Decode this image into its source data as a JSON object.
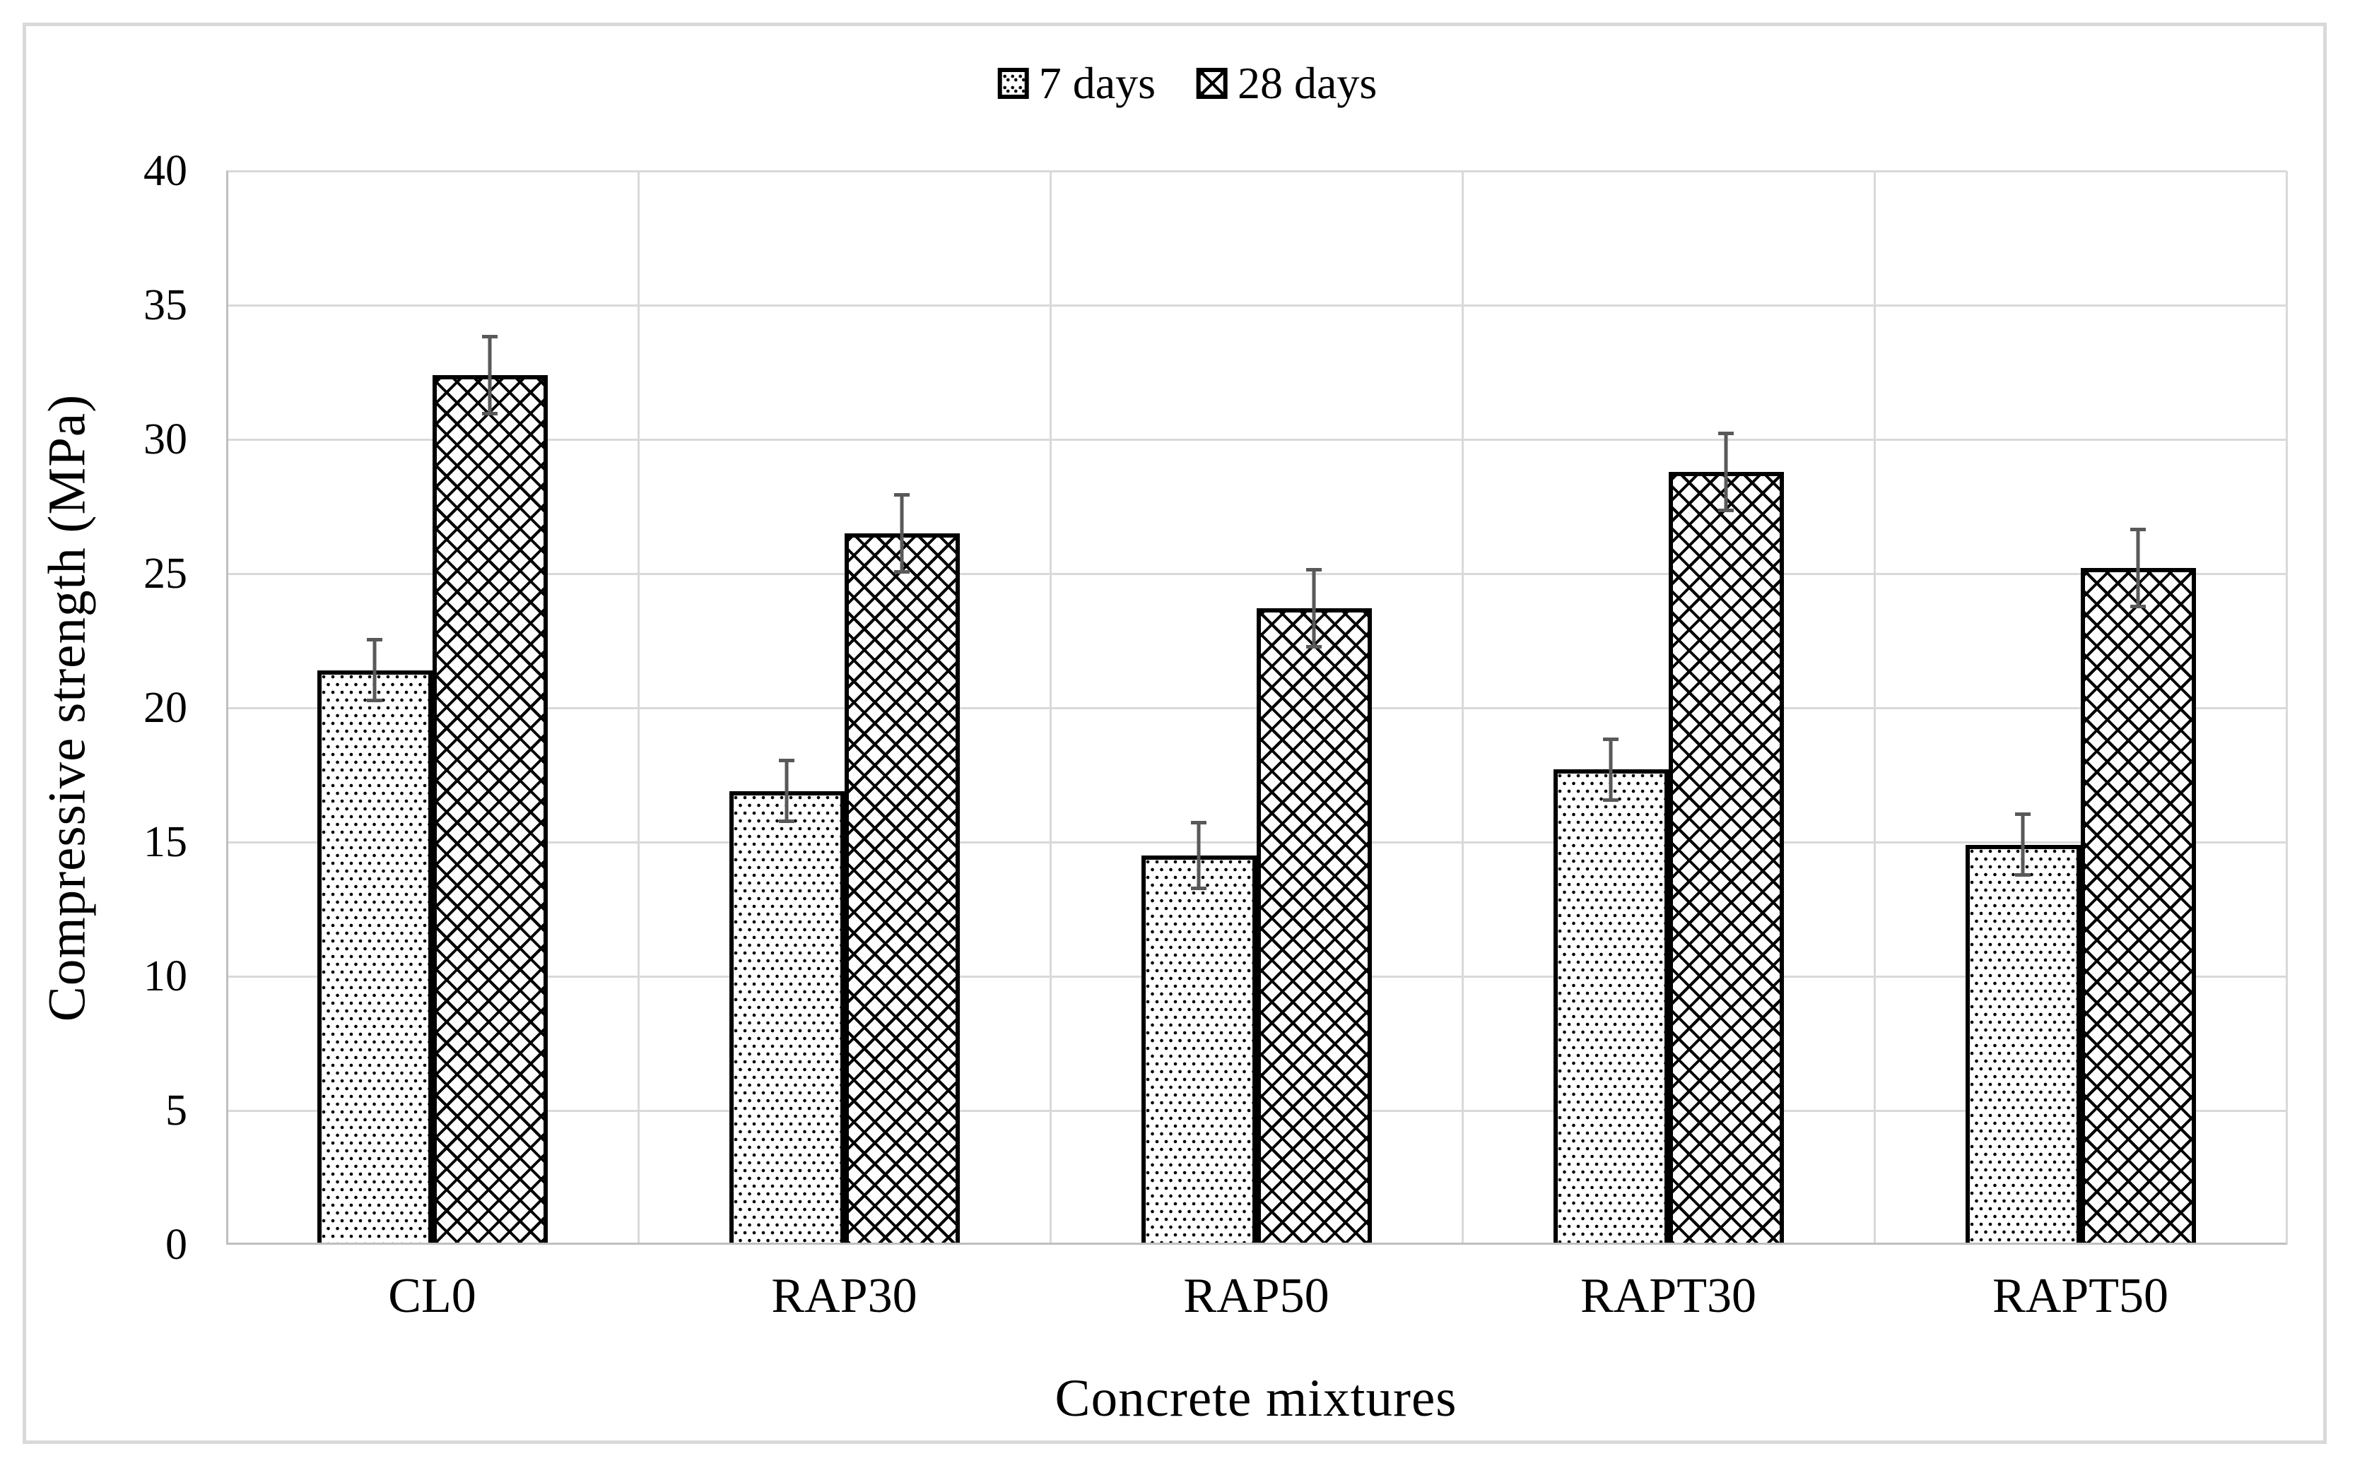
{
  "figure": {
    "xlabel": "Concrete mixtures",
    "ylabel": "Compressive strength (MPa)"
  },
  "chart_data": {
    "type": "bar",
    "title": "",
    "xlabel": "Concrete mixtures",
    "ylabel": "Compressive strength (MPa)",
    "categories": [
      "CL0",
      "RAP30",
      "RAP50",
      "RAPT30",
      "RAPT50"
    ],
    "series": [
      {
        "name": "7 days",
        "pattern": "dots",
        "values": [
          21.4,
          16.9,
          14.5,
          17.7,
          14.9
        ],
        "errors": [
          1.2,
          1.2,
          1.3,
          1.2,
          1.2
        ]
      },
      {
        "name": "28 days",
        "pattern": "crosshatch",
        "values": [
          32.4,
          26.5,
          23.7,
          28.8,
          25.2
        ],
        "errors": [
          1.5,
          1.5,
          1.5,
          1.5,
          1.5
        ]
      }
    ],
    "ylim": [
      0,
      40
    ],
    "yticks": [
      0,
      5,
      10,
      15,
      20,
      25,
      30,
      35,
      40
    ],
    "grid": "horizontal gridlines every 5 MPa plus vertical category separators",
    "legend_position": "top-center",
    "error_bars": true,
    "colors": {
      "bar_fill": "#ffffff",
      "bar_border": "#000000",
      "gridline": "#d9d9d9",
      "axis_line": "#bfbfbf",
      "error_bar": "#595959",
      "text": "#000000",
      "figure_border": "#d9d9d9"
    }
  }
}
